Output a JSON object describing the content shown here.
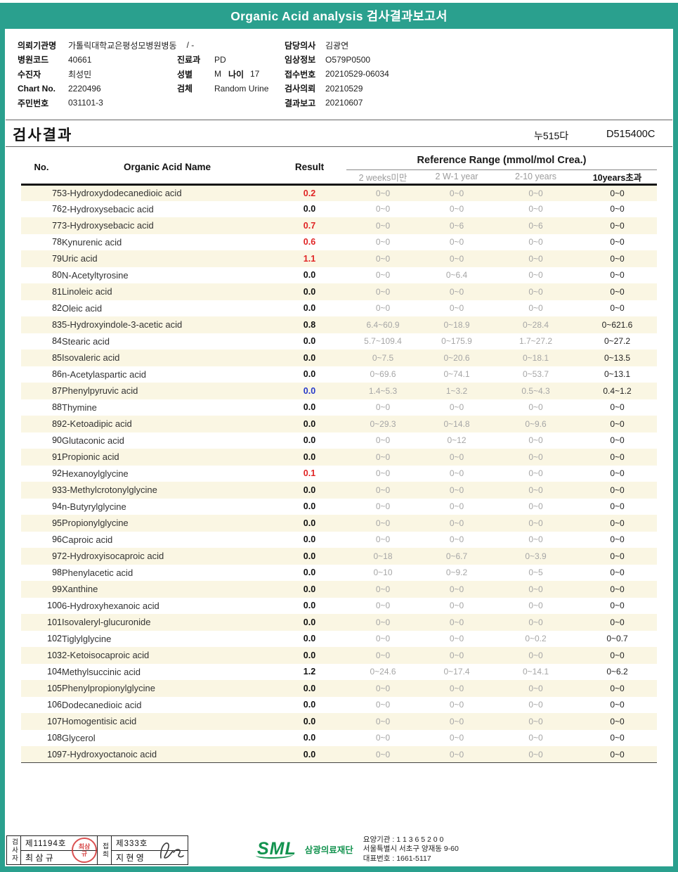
{
  "colors": {
    "title_bar_teal": "#2aa08e",
    "row_stripe_cream": "#faf6e3",
    "abnormal_red": "#e02424",
    "abnormal_blue": "#2639c8",
    "brand_green": "#13934f",
    "seal_red": "#d33333"
  },
  "header": {
    "title": "Organic Acid analysis 검사결과보고서"
  },
  "info": {
    "rows": [
      {
        "l1": "의뢰기관명",
        "v1": "가톨릭대학교은평성모병원병동",
        "v1b": "/ -",
        "l3": "담당의사",
        "v3": "김광연"
      },
      {
        "l1": "병원코드",
        "v1": "40661",
        "l2": "진료과",
        "v2": "PD",
        "l3": "임상정보",
        "v3": "O579P0500"
      },
      {
        "l1": "수진자",
        "v1": "최성민",
        "l2": "성별",
        "v2": "M",
        "l2b": "나이",
        "v2b": "17",
        "l3": "접수번호",
        "v3": "20210529-06034"
      },
      {
        "l1": "Chart No.",
        "v1": "2220496",
        "l2": "검체",
        "v2": "Random Urine",
        "l3": "검사의뢰",
        "v3": "20210529"
      },
      {
        "l1": "주민번호",
        "v1": "031101-3",
        "l3": "결과보고",
        "v3": "20210607"
      }
    ]
  },
  "results": {
    "section_title": "검사결과",
    "code_kr": "누515다",
    "code_en": "D515400C",
    "columns": {
      "no": "No.",
      "name": "Organic Acid Name",
      "result": "Result",
      "reference": "Reference Range (mmol/mol Crea.)",
      "ref_sub": [
        "2 weeks미만",
        "2 W-1 year",
        "2-10 years",
        "10years초과"
      ]
    },
    "rows": [
      {
        "no": "75",
        "name": "3-Hydroxydodecanedioic acid",
        "result": "0.2",
        "rc": "red",
        "refs": [
          "0~0",
          "0~0",
          "0~0",
          "0~0"
        ]
      },
      {
        "no": "76",
        "name": "2-Hydroxysebacic acid",
        "result": "0.0",
        "refs": [
          "0~0",
          "0~0",
          "0~0",
          "0~0"
        ]
      },
      {
        "no": "77",
        "name": "3-Hydroxysebacic acid",
        "result": "0.7",
        "rc": "red",
        "refs": [
          "0~0",
          "0~6",
          "0~6",
          "0~0"
        ]
      },
      {
        "no": "78",
        "name": "Kynurenic acid",
        "result": "0.6",
        "rc": "red",
        "refs": [
          "0~0",
          "0~0",
          "0~0",
          "0~0"
        ]
      },
      {
        "no": "79",
        "name": "Uric acid",
        "result": "1.1",
        "rc": "red",
        "refs": [
          "0~0",
          "0~0",
          "0~0",
          "0~0"
        ]
      },
      {
        "no": "80",
        "name": "N-Acetyltyrosine",
        "result": "0.0",
        "refs": [
          "0~0",
          "0~6.4",
          "0~0",
          "0~0"
        ]
      },
      {
        "no": "81",
        "name": "Linoleic acid",
        "result": "0.0",
        "refs": [
          "0~0",
          "0~0",
          "0~0",
          "0~0"
        ]
      },
      {
        "no": "82",
        "name": "Oleic acid",
        "result": "0.0",
        "refs": [
          "0~0",
          "0~0",
          "0~0",
          "0~0"
        ]
      },
      {
        "no": "83",
        "name": "5-Hydroxyindole-3-acetic acid",
        "result": "0.8",
        "refs": [
          "6.4~60.9",
          "0~18.9",
          "0~28.4",
          "0~621.6"
        ]
      },
      {
        "no": "84",
        "name": "Stearic acid",
        "result": "0.0",
        "refs": [
          "5.7~109.4",
          "0~175.9",
          "1.7~27.2",
          "0~27.2"
        ]
      },
      {
        "no": "85",
        "name": "Isovaleric acid",
        "result": "0.0",
        "refs": [
          "0~7.5",
          "0~20.6",
          "0~18.1",
          "0~13.5"
        ]
      },
      {
        "no": "86",
        "name": "n-Acetylaspartic acid",
        "result": "0.0",
        "refs": [
          "0~69.6",
          "0~74.1",
          "0~53.7",
          "0~13.1"
        ]
      },
      {
        "no": "87",
        "name": "Phenylpyruvic acid",
        "result": "0.0",
        "rc": "blue",
        "refs": [
          "1.4~5.3",
          "1~3.2",
          "0.5~4.3",
          "0.4~1.2"
        ]
      },
      {
        "no": "88",
        "name": "Thymine",
        "result": "0.0",
        "refs": [
          "0~0",
          "0~0",
          "0~0",
          "0~0"
        ]
      },
      {
        "no": "89",
        "name": "2-Ketoadipic acid",
        "result": "0.0",
        "refs": [
          "0~29.3",
          "0~14.8",
          "0~9.6",
          "0~0"
        ]
      },
      {
        "no": "90",
        "name": "Glutaconic acid",
        "result": "0.0",
        "refs": [
          "0~0",
          "0~12",
          "0~0",
          "0~0"
        ]
      },
      {
        "no": "91",
        "name": "Propionic acid",
        "result": "0.0",
        "refs": [
          "0~0",
          "0~0",
          "0~0",
          "0~0"
        ]
      },
      {
        "no": "92",
        "name": "Hexanoylglycine",
        "result": "0.1",
        "rc": "red",
        "refs": [
          "0~0",
          "0~0",
          "0~0",
          "0~0"
        ]
      },
      {
        "no": "93",
        "name": "3-Methylcrotonylglycine",
        "result": "0.0",
        "refs": [
          "0~0",
          "0~0",
          "0~0",
          "0~0"
        ]
      },
      {
        "no": "94",
        "name": "n-Butyrylglycine",
        "result": "0.0",
        "refs": [
          "0~0",
          "0~0",
          "0~0",
          "0~0"
        ]
      },
      {
        "no": "95",
        "name": "Propionylglycine",
        "result": "0.0",
        "refs": [
          "0~0",
          "0~0",
          "0~0",
          "0~0"
        ]
      },
      {
        "no": "96",
        "name": "Caproic acid",
        "result": "0.0",
        "refs": [
          "0~0",
          "0~0",
          "0~0",
          "0~0"
        ]
      },
      {
        "no": "97",
        "name": "2-Hydroxyisocaproic acid",
        "result": "0.0",
        "refs": [
          "0~18",
          "0~6.7",
          "0~3.9",
          "0~0"
        ]
      },
      {
        "no": "98",
        "name": "Phenylacetic acid",
        "result": "0.0",
        "refs": [
          "0~10",
          "0~9.2",
          "0~5",
          "0~0"
        ]
      },
      {
        "no": "99",
        "name": "Xanthine",
        "result": "0.0",
        "refs": [
          "0~0",
          "0~0",
          "0~0",
          "0~0"
        ]
      },
      {
        "no": "100",
        "name": "6-Hydroxyhexanoic acid",
        "result": "0.0",
        "refs": [
          "0~0",
          "0~0",
          "0~0",
          "0~0"
        ]
      },
      {
        "no": "101",
        "name": "Isovaleryl-glucuronide",
        "result": "0.0",
        "refs": [
          "0~0",
          "0~0",
          "0~0",
          "0~0"
        ]
      },
      {
        "no": "102",
        "name": "Tiglylglycine",
        "result": "0.0",
        "refs": [
          "0~0",
          "0~0",
          "0~0.2",
          "0~0.7"
        ]
      },
      {
        "no": "103",
        "name": "2-Ketoisocaproic acid",
        "result": "0.0",
        "refs": [
          "0~0",
          "0~0",
          "0~0",
          "0~0"
        ]
      },
      {
        "no": "104",
        "name": "Methylsuccinic acid",
        "result": "1.2",
        "refs": [
          "0~24.6",
          "0~17.4",
          "0~14.1",
          "0~6.2"
        ]
      },
      {
        "no": "105",
        "name": "Phenylpropionylglycine",
        "result": "0.0",
        "refs": [
          "0~0",
          "0~0",
          "0~0",
          "0~0"
        ]
      },
      {
        "no": "106",
        "name": "Dodecanedioic acid",
        "result": "0.0",
        "refs": [
          "0~0",
          "0~0",
          "0~0",
          "0~0"
        ]
      },
      {
        "no": "107",
        "name": "Homogentisic acid",
        "result": "0.0",
        "refs": [
          "0~0",
          "0~0",
          "0~0",
          "0~0"
        ]
      },
      {
        "no": "108",
        "name": "Glycerol",
        "result": "0.0",
        "refs": [
          "0~0",
          "0~0",
          "0~0",
          "0~0"
        ]
      },
      {
        "no": "109",
        "name": "7-Hydroxyoctanoic acid",
        "result": "0.0",
        "refs": [
          "0~0",
          "0~0",
          "0~0",
          "0~0"
        ]
      }
    ]
  },
  "footer": {
    "examiner": {
      "side_label": "검사자",
      "cert": "제11194호",
      "name": "최 삼 규",
      "stamp_text": "최삼규"
    },
    "reviewer": {
      "side_label": "접희",
      "cert": "제333호",
      "name": "지 현 영"
    },
    "org": {
      "logo": "SML",
      "name": "삼광의료재단",
      "line1": "요양기관 : 1 1 3 6 5 2 0 0",
      "line2": "서울특별시 서초구 양재동 9-60",
      "line3": "대표번호 : 1661-5117"
    }
  }
}
